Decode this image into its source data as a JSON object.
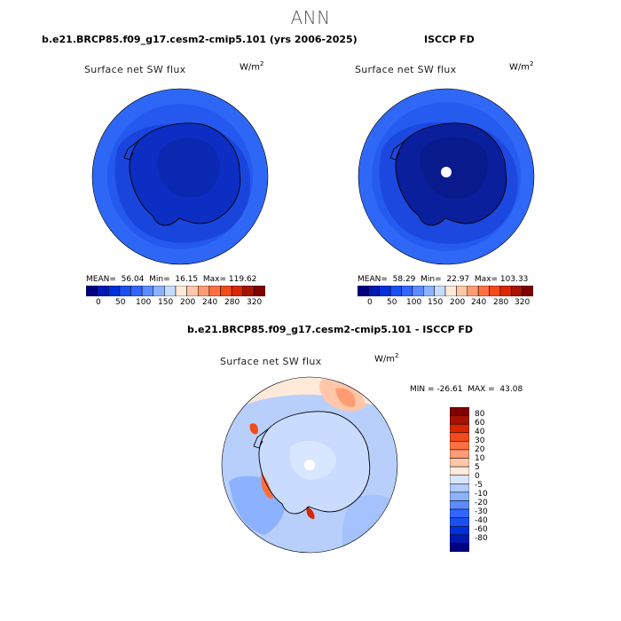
{
  "figure": {
    "season": "ANN",
    "units_base": "W/m",
    "units_exp": "2",
    "colors": {
      "abs_scale": [
        "#000080",
        "#0019b3",
        "#0030d9",
        "#1a4ff0",
        "#3366ff",
        "#5b8bff",
        "#8cb2ff",
        "#c6dcff",
        "#ffe9d9",
        "#ffc6a8",
        "#ff9c73",
        "#ff7040",
        "#f24a1a",
        "#d92600",
        "#a61300",
        "#800000"
      ],
      "diff_scale": [
        "#000080",
        "#0019b3",
        "#0030d9",
        "#1a4ff0",
        "#3366ff",
        "#5b8bff",
        "#8cb2ff",
        "#b3ccff",
        "#d9e6ff",
        "#ffeadc",
        "#ffc6a8",
        "#ff9c73",
        "#ff7040",
        "#f24a1a",
        "#d92600",
        "#a61300",
        "#800000"
      ]
    }
  },
  "chart_data": [
    {
      "type": "heatmap",
      "panel": "test",
      "projection": "south polar stereographic",
      "case_title": "b.e21.BRCP85.f09_g17.cesm2-cmip5.101 (yrs 2006-2025)",
      "variable": "Surface net SW flux",
      "units": "W/m^2",
      "mean_label": "MEAN=",
      "mean": "56.04",
      "min_label": "Min=",
      "min": "16.15",
      "max_label": "Max=",
      "max": "119.62",
      "colorbar_ticks": [
        "0",
        "50",
        "100",
        "150",
        "200",
        "240",
        "280",
        "320"
      ]
    },
    {
      "type": "heatmap",
      "panel": "obs",
      "projection": "south polar stereographic",
      "case_title": "ISCCP FD",
      "variable": "Surface net SW flux",
      "units": "W/m^2",
      "mean_label": "MEAN=",
      "mean": "58.29",
      "min_label": "Min=",
      "min": "22.97",
      "max_label": "Max=",
      "max": "103.33",
      "colorbar_ticks": [
        "0",
        "50",
        "100",
        "150",
        "200",
        "240",
        "280",
        "320"
      ]
    },
    {
      "type": "heatmap",
      "panel": "difference",
      "projection": "south polar stereographic",
      "case_title": "b.e21.BRCP85.f09_g17.cesm2-cmip5.101 - ISCCP FD",
      "variable": "Surface net SW flux",
      "units": "W/m^2",
      "min_label": "MIN =",
      "min": "-26.61",
      "max_label": "MAX =",
      "max": "43.08",
      "colorbar_ticks": [
        "80",
        "60",
        "40",
        "30",
        "20",
        "10",
        "5",
        "0",
        "-5",
        "-10",
        "-20",
        "-30",
        "-40",
        "-60",
        "-80"
      ]
    }
  ]
}
